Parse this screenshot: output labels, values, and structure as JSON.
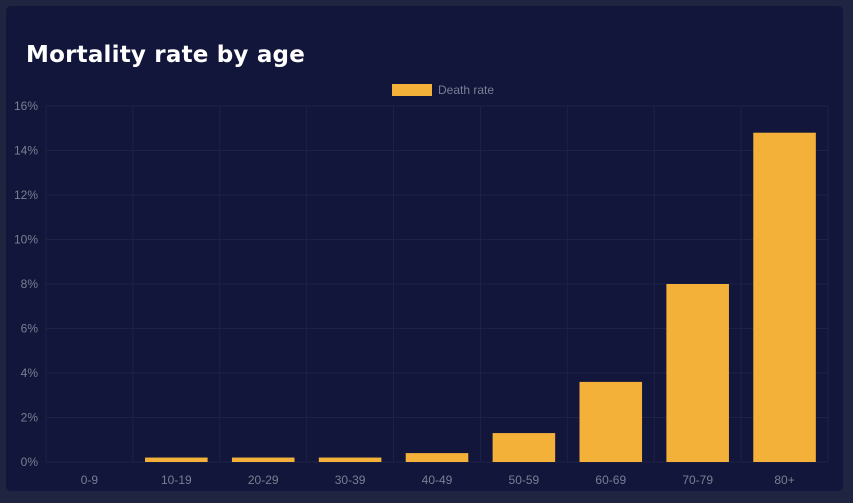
{
  "card": {
    "title": "Mortality rate by age"
  },
  "colors": {
    "background": "#1f2440",
    "card": "#11163a",
    "bar": "#f4b13a",
    "grid": "#1d2246",
    "tick_text": "#7a7f93"
  },
  "chart_data": {
    "type": "bar",
    "title": "Mortality rate by age",
    "xlabel": "",
    "ylabel": "",
    "categories": [
      "0-9",
      "10-19",
      "20-29",
      "30-39",
      "40-49",
      "50-59",
      "60-69",
      "70-79",
      "80+"
    ],
    "series": [
      {
        "name": "Death rate",
        "color": "#f4b13a",
        "values": [
          0,
          0.2,
          0.2,
          0.2,
          0.4,
          1.3,
          3.6,
          8.0,
          14.8
        ]
      }
    ],
    "ylim": [
      0,
      16
    ],
    "y_ticks": [
      0,
      2,
      4,
      6,
      8,
      10,
      12,
      14,
      16
    ],
    "y_tick_format": "percent",
    "grid": true,
    "legend": "top-center"
  }
}
